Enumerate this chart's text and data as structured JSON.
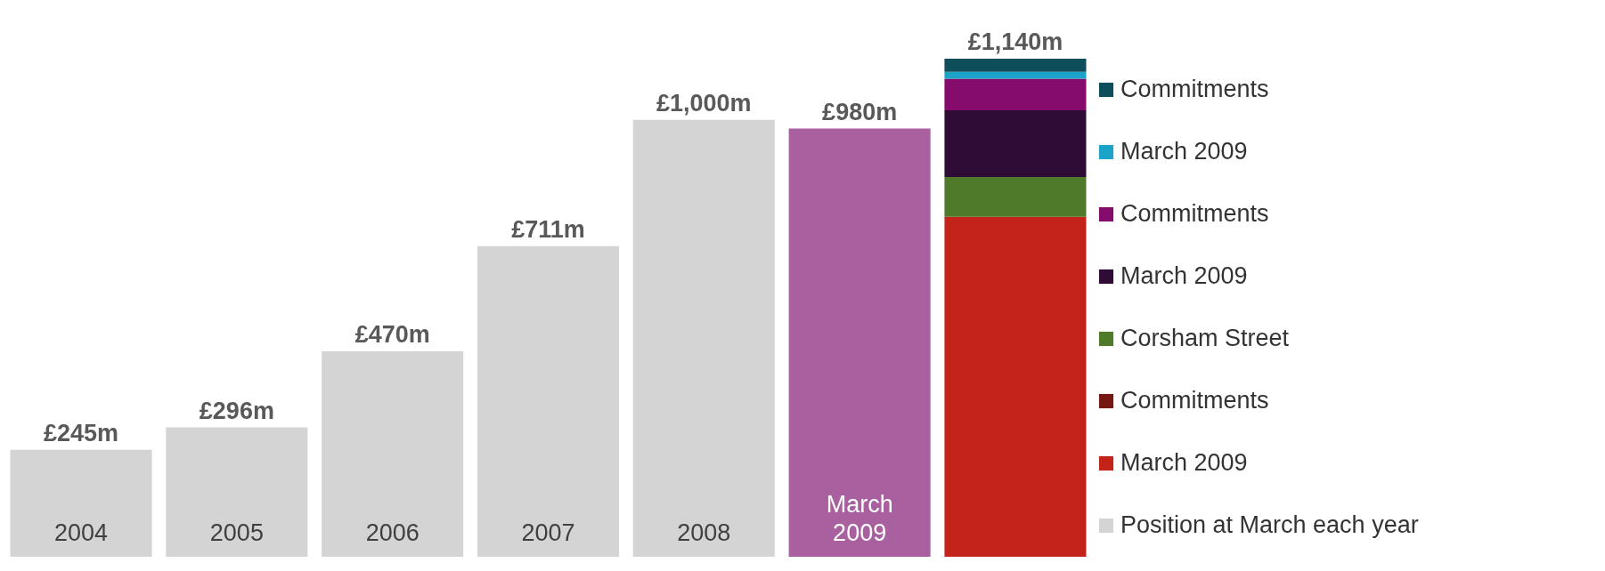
{
  "chart_data": {
    "type": "bar",
    "stacked": true,
    "legend": "right",
    "categories": [
      "2004",
      "2005",
      "2006",
      "2007",
      "2008",
      "March 2009",
      null
    ],
    "series": [
      {
        "name": "Position at March each year",
        "color": "#d4d4d4",
        "colors": [
          "#d4d4d4",
          "#d4d4d4",
          "#d4d4d4",
          "#d4d4d4",
          "#d4d4d4",
          "#a8609f",
          null
        ],
        "values": [
          245,
          296,
          470,
          711,
          1000,
          980,
          null
        ],
        "value_labels": [
          "£245m",
          "£296m",
          "£470m",
          "£711m",
          "£1,000m",
          "£980m",
          null
        ]
      },
      {
        "name": "March 2009",
        "color": "#c4231a",
        "values": [
          null,
          null,
          null,
          null,
          null,
          null,
          778
        ]
      },
      {
        "name": "Commitments",
        "color": "#761811",
        "values": [
          null,
          null,
          null,
          null,
          null,
          null,
          null
        ]
      },
      {
        "name": "Corsham Street",
        "color": "#4f7a2a",
        "values": [
          null,
          null,
          null,
          null,
          null,
          null,
          91
        ]
      },
      {
        "name": "March 2009",
        "color": "#2e0c35",
        "values": [
          null,
          null,
          null,
          null,
          null,
          null,
          153
        ]
      },
      {
        "name": "Commitments",
        "color": "#850c6c",
        "values": [
          null,
          null,
          null,
          null,
          null,
          null,
          72
        ]
      },
      {
        "name": "March 2009",
        "color": "#1ba4c8",
        "values": [
          null,
          null,
          null,
          null,
          null,
          null,
          16
        ]
      },
      {
        "name": "Commitments",
        "color": "#0e4e5a",
        "values": [
          null,
          null,
          null,
          null,
          null,
          null,
          30
        ]
      }
    ],
    "totals": [
      null,
      null,
      null,
      null,
      null,
      null,
      "£1,140m"
    ]
  }
}
